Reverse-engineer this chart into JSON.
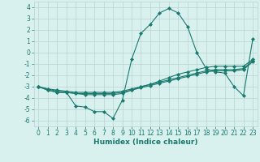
{
  "xlabel": "Humidex (Indice chaleur)",
  "x": [
    0,
    1,
    2,
    3,
    4,
    5,
    6,
    7,
    8,
    9,
    10,
    11,
    12,
    13,
    14,
    15,
    16,
    17,
    18,
    19,
    20,
    21,
    22,
    23
  ],
  "line1": [
    -3.0,
    -3.3,
    -3.5,
    -3.5,
    -4.7,
    -4.8,
    -5.2,
    -5.2,
    -5.8,
    -4.2,
    -0.6,
    1.7,
    2.5,
    3.5,
    3.9,
    3.5,
    2.3,
    0.0,
    -1.4,
    -1.7,
    -1.8,
    -3.0,
    -3.8,
    1.2
  ],
  "line2": [
    -3.0,
    -3.3,
    -3.5,
    -3.5,
    -3.6,
    -3.6,
    -3.6,
    -3.6,
    -3.6,
    -3.5,
    -3.3,
    -3.1,
    -2.9,
    -2.7,
    -2.5,
    -2.3,
    -2.1,
    -1.9,
    -1.7,
    -1.6,
    -1.6,
    -1.6,
    -1.5,
    -0.8
  ],
  "line3": [
    -3.0,
    -3.2,
    -3.4,
    -3.5,
    -3.6,
    -3.7,
    -3.7,
    -3.7,
    -3.7,
    -3.6,
    -3.3,
    -3.0,
    -2.8,
    -2.5,
    -2.2,
    -1.9,
    -1.7,
    -1.5,
    -1.3,
    -1.2,
    -1.2,
    -1.2,
    -1.2,
    -0.6
  ],
  "line4": [
    -3.0,
    -3.2,
    -3.3,
    -3.4,
    -3.5,
    -3.5,
    -3.5,
    -3.5,
    -3.5,
    -3.4,
    -3.2,
    -3.0,
    -2.8,
    -2.6,
    -2.4,
    -2.2,
    -2.0,
    -1.8,
    -1.6,
    -1.5,
    -1.5,
    -1.5,
    -1.4,
    -0.7
  ],
  "line_color": "#1a7a6e",
  "bg_color": "#d8f0ee",
  "grid_color": "#b8d4d0",
  "ylim": [
    -6.5,
    4.5
  ],
  "xlim": [
    -0.5,
    23.5
  ],
  "yticks": [
    -6,
    -5,
    -4,
    -3,
    -2,
    -1,
    0,
    1,
    2,
    3,
    4
  ],
  "xticks": [
    0,
    1,
    2,
    3,
    4,
    5,
    6,
    7,
    8,
    9,
    10,
    11,
    12,
    13,
    14,
    15,
    16,
    17,
    18,
    19,
    20,
    21,
    22,
    23
  ],
  "tick_fontsize": 5.5,
  "xlabel_fontsize": 6.5,
  "marker_size": 2.0,
  "line_width": 0.8
}
